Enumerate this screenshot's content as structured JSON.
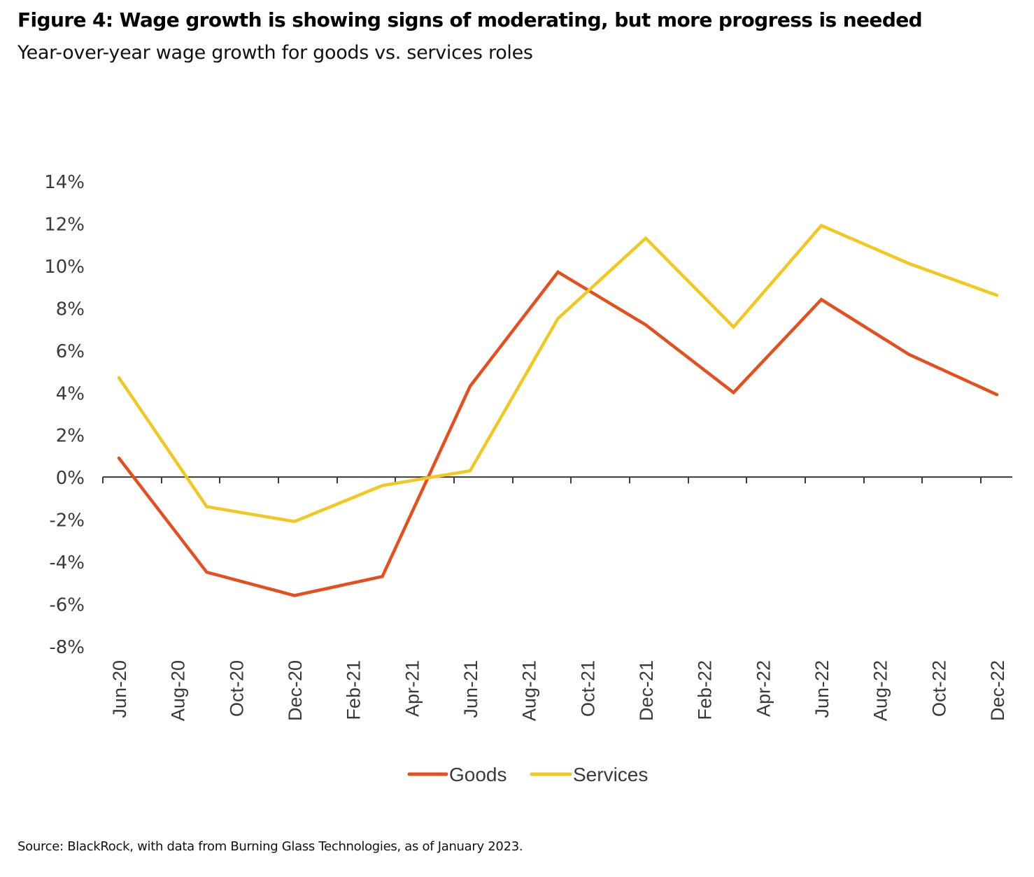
{
  "header": {
    "title": "Figure 4: Wage growth is showing signs of moderating, but more progress is needed",
    "subtitle": "Year-over-year wage growth for goods vs. services roles"
  },
  "footer": {
    "source": "Source: BlackRock, with data from Burning Glass Technologies, as of January 2023."
  },
  "chart_data": {
    "type": "line",
    "title": "Figure 4: Wage growth is showing signs of moderating, but more progress is needed",
    "subtitle": "Year-over-year wage growth for goods vs. services roles",
    "xlabel": "",
    "ylabel": "",
    "x_tick_labels": [
      "Jun-20",
      "Aug-20",
      "Oct-20",
      "Dec-20",
      "Feb-21",
      "Apr-21",
      "Jun-21",
      "Aug-21",
      "Oct-21",
      "Dec-21",
      "Feb-22",
      "Apr-22",
      "Jun-22",
      "Aug-22",
      "Oct-22",
      "Dec-22"
    ],
    "x_range_months": [
      "Jun-20",
      "Dec-22"
    ],
    "y_ticks": [
      14,
      12,
      10,
      8,
      6,
      4,
      2,
      0,
      -2,
      -4,
      -6,
      -8
    ],
    "y_tick_labels": [
      "14%",
      "12%",
      "10%",
      "8%",
      "6%",
      "4%",
      "2%",
      "0%",
      "-2%",
      "-4%",
      "-6%",
      "-8%"
    ],
    "ylim": [
      -8,
      14
    ],
    "grid": false,
    "legend_position": "bottom-center",
    "x": [
      "Jun-20",
      "Sep-20",
      "Dec-20",
      "Mar-21",
      "Jun-21",
      "Sep-21",
      "Dec-21",
      "Mar-22",
      "Jun-22",
      "Sep-22",
      "Dec-22"
    ],
    "x_month_index": [
      0,
      3,
      6,
      9,
      12,
      15,
      18,
      21,
      24,
      27,
      30
    ],
    "series": [
      {
        "name": "Goods",
        "color": "#e84e1b",
        "values": [
          0.9,
          -4.5,
          -5.6,
          -4.7,
          4.3,
          9.7,
          7.2,
          4.0,
          8.4,
          5.8,
          3.9
        ]
      },
      {
        "name": "Services",
        "color": "#f2c81e",
        "values": [
          4.7,
          -1.4,
          -2.1,
          -0.4,
          0.3,
          7.5,
          11.3,
          7.1,
          11.9,
          10.1,
          8.6
        ]
      }
    ],
    "axis_color": "#3a3a3a"
  }
}
